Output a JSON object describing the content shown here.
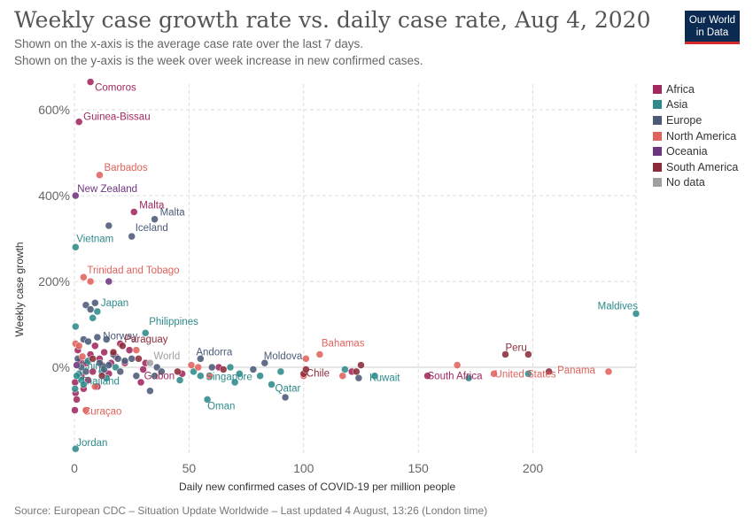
{
  "header": {
    "title": "Weekly case growth rate vs. daily case rate, Aug 4, 2020",
    "subtitle_1": "Shown on the x-axis is the average case rate over the last 7 days.",
    "subtitle_2": "Shown on the y-axis is the week over week increase in new confirmed cases.",
    "logo_line_1": "Our World",
    "logo_line_2": "in Data"
  },
  "footer": {
    "source": "Source: European CDC – Situation Update Worldwide – Last updated 4 August, 13:26 (London time)"
  },
  "colors": {
    "Africa": "#a2285e",
    "Asia": "#2e8a8a",
    "Europe": "#4c5a78",
    "North America": "#e0625c",
    "Oceania": "#6e3580",
    "South America": "#8c2b3a",
    "No data": "#a0a0a0"
  },
  "chart_data": {
    "type": "scatter",
    "xlabel": "Daily new confirmed cases of COVID-19 per million people",
    "ylabel": "Weekly case growth",
    "xlim": [
      0,
      245
    ],
    "ylim": [
      -200,
      660
    ],
    "x_ticks": [
      0,
      50,
      100,
      150,
      200
    ],
    "x_tick_labels": [
      "0",
      "50",
      "100",
      "150",
      "200"
    ],
    "y_ticks": [
      0,
      200,
      400,
      600
    ],
    "y_tick_labels": [
      "0%",
      "200%",
      "400%",
      "600%"
    ],
    "grid": true,
    "legend_position": "right",
    "legend": [
      "Africa",
      "Asia",
      "Europe",
      "North America",
      "Oceania",
      "South America",
      "No data"
    ],
    "series": [
      {
        "name": "Africa",
        "points": [
          {
            "x": 7,
            "y": 665,
            "label": "Comoros"
          },
          {
            "x": 2,
            "y": 572,
            "label": "Guinea-Bissau"
          },
          {
            "x": 26,
            "y": 362,
            "label": "Malta"
          },
          {
            "x": 154,
            "y": -20,
            "label": "South Africa"
          },
          {
            "x": 30,
            "y": -5,
            "label": "Gabon"
          },
          {
            "x": 0.3,
            "y": -35
          },
          {
            "x": 0.5,
            "y": -60
          },
          {
            "x": 1,
            "y": -75
          },
          {
            "x": 0.2,
            "y": -100
          },
          {
            "x": 1.5,
            "y": 40
          },
          {
            "x": 2.5,
            "y": 15
          },
          {
            "x": 3,
            "y": -20
          },
          {
            "x": 4,
            "y": -50
          },
          {
            "x": 5,
            "y": 10
          },
          {
            "x": 6,
            "y": -30
          },
          {
            "x": 7,
            "y": 30
          },
          {
            "x": 8,
            "y": -10
          },
          {
            "x": 9,
            "y": 50
          },
          {
            "x": 10,
            "y": -45
          },
          {
            "x": 11,
            "y": 20
          },
          {
            "x": 12,
            "y": 5
          },
          {
            "x": 13,
            "y": 35
          },
          {
            "x": 15,
            "y": -15
          },
          {
            "x": 16,
            "y": 10
          },
          {
            "x": 18,
            "y": 25
          },
          {
            "x": 20,
            "y": 55
          },
          {
            "x": 22,
            "y": 10
          },
          {
            "x": 24,
            "y": 40
          },
          {
            "x": 29,
            "y": -35
          },
          {
            "x": 31,
            "y": 10
          },
          {
            "x": 47,
            "y": -15
          },
          {
            "x": 63,
            "y": 0
          },
          {
            "x": 121,
            "y": -10
          }
        ]
      },
      {
        "name": "Asia",
        "points": [
          {
            "x": 0.5,
            "y": 280,
            "label": "Vietnam"
          },
          {
            "x": 245,
            "y": 125,
            "label": "Maldives"
          },
          {
            "x": 31,
            "y": 80,
            "label": "Philippines"
          },
          {
            "x": 55,
            "y": -20,
            "label": "Singapore"
          },
          {
            "x": 86,
            "y": -40,
            "label": "Qatar"
          },
          {
            "x": 58,
            "y": -75,
            "label": "Oman"
          },
          {
            "x": 131,
            "y": -20,
            "label": "Kuwait"
          },
          {
            "x": 0.5,
            "y": -190,
            "label": "Jordan"
          },
          {
            "x": 2,
            "y": -15,
            "label": "China"
          },
          {
            "x": 3,
            "y": -30,
            "label": "Thailand"
          },
          {
            "x": 10,
            "y": 130,
            "label": "Japan"
          },
          {
            "x": 0.5,
            "y": 95
          },
          {
            "x": 0.3,
            "y": -50
          },
          {
            "x": 1,
            "y": -20
          },
          {
            "x": 4,
            "y": -40
          },
          {
            "x": 8,
            "y": 115
          },
          {
            "x": 6,
            "y": 15
          },
          {
            "x": 12,
            "y": -10
          },
          {
            "x": 14,
            "y": -25
          },
          {
            "x": 18,
            "y": 0
          },
          {
            "x": 35,
            "y": -20
          },
          {
            "x": 46,
            "y": -30
          },
          {
            "x": 52,
            "y": -10
          },
          {
            "x": 68,
            "y": 0
          },
          {
            "x": 70,
            "y": -35
          },
          {
            "x": 72,
            "y": -15
          },
          {
            "x": 81,
            "y": -20
          },
          {
            "x": 90,
            "y": -10
          },
          {
            "x": 118,
            "y": -5
          },
          {
            "x": 172,
            "y": -25
          },
          {
            "x": 198,
            "y": -15
          }
        ]
      },
      {
        "name": "Europe",
        "points": [
          {
            "x": 35,
            "y": 345,
            "label": "Malta"
          },
          {
            "x": 25,
            "y": 305,
            "label": "Iceland"
          },
          {
            "x": 15,
            "y": 330
          },
          {
            "x": 14,
            "y": 65,
            "label": "Norway"
          },
          {
            "x": 55,
            "y": 20,
            "label": "Andorra"
          },
          {
            "x": 83,
            "y": 10,
            "label": "Moldova"
          },
          {
            "x": 5,
            "y": 145
          },
          {
            "x": 7,
            "y": 135
          },
          {
            "x": 9,
            "y": 150
          },
          {
            "x": 4,
            "y": 65
          },
          {
            "x": 6,
            "y": 60
          },
          {
            "x": 10,
            "y": 70
          },
          {
            "x": 1.5,
            "y": 20
          },
          {
            "x": 3,
            "y": 0
          },
          {
            "x": 5,
            "y": -10
          },
          {
            "x": 11,
            "y": 10
          },
          {
            "x": 13,
            "y": -5
          },
          {
            "x": 15,
            "y": 5
          },
          {
            "x": 17,
            "y": 30
          },
          {
            "x": 19,
            "y": 20
          },
          {
            "x": 20,
            "y": -10
          },
          {
            "x": 22,
            "y": 15
          },
          {
            "x": 25,
            "y": 20
          },
          {
            "x": 27,
            "y": -20
          },
          {
            "x": 33,
            "y": -55
          },
          {
            "x": 36,
            "y": 0
          },
          {
            "x": 38,
            "y": -10
          },
          {
            "x": 60,
            "y": 0
          },
          {
            "x": 78,
            "y": -5
          },
          {
            "x": 92,
            "y": -70
          },
          {
            "x": 124,
            "y": -25
          }
        ]
      },
      {
        "name": "North America",
        "points": [
          {
            "x": 11,
            "y": 448,
            "label": "Barbados"
          },
          {
            "x": 4,
            "y": 210,
            "label": "Trinidad and Tobago"
          },
          {
            "x": 7,
            "y": 200
          },
          {
            "x": 107,
            "y": 30,
            "label": "Bahamas"
          },
          {
            "x": 183,
            "y": -15,
            "label": "United States"
          },
          {
            "x": 233,
            "y": -10,
            "label": "Panama"
          },
          {
            "x": 5,
            "y": -100,
            "label": "Curaçao"
          },
          {
            "x": 0.5,
            "y": 55
          },
          {
            "x": 2,
            "y": 50
          },
          {
            "x": 3.5,
            "y": 25
          },
          {
            "x": 9,
            "y": -45
          },
          {
            "x": 27,
            "y": 40
          },
          {
            "x": 51,
            "y": 5
          },
          {
            "x": 54,
            "y": 0
          },
          {
            "x": 59,
            "y": -20
          },
          {
            "x": 100,
            "y": -20
          },
          {
            "x": 101,
            "y": 20
          },
          {
            "x": 117,
            "y": -20
          },
          {
            "x": 167,
            "y": 5
          }
        ]
      },
      {
        "name": "Oceania",
        "points": [
          {
            "x": 0.5,
            "y": 400,
            "label": "New Zealand"
          },
          {
            "x": 15,
            "y": 200
          },
          {
            "x": 1,
            "y": 5
          }
        ]
      },
      {
        "name": "South America",
        "points": [
          {
            "x": 188,
            "y": 30,
            "label": "Peru"
          },
          {
            "x": 100,
            "y": -15,
            "label": "Chile"
          },
          {
            "x": 21,
            "y": 50,
            "label": "Paraguay"
          },
          {
            "x": 198,
            "y": 30
          },
          {
            "x": 207,
            "y": -10
          },
          {
            "x": 101,
            "y": -5
          },
          {
            "x": 125,
            "y": 5
          },
          {
            "x": 123,
            "y": -10
          },
          {
            "x": 65,
            "y": -5
          },
          {
            "x": 45,
            "y": -10
          },
          {
            "x": 8,
            "y": 20
          },
          {
            "x": 12,
            "y": -20
          },
          {
            "x": 17,
            "y": 35
          },
          {
            "x": 28,
            "y": 20
          }
        ]
      },
      {
        "name": "No data",
        "points": [
          {
            "x": 33,
            "y": 10,
            "label": "World"
          }
        ]
      }
    ]
  }
}
